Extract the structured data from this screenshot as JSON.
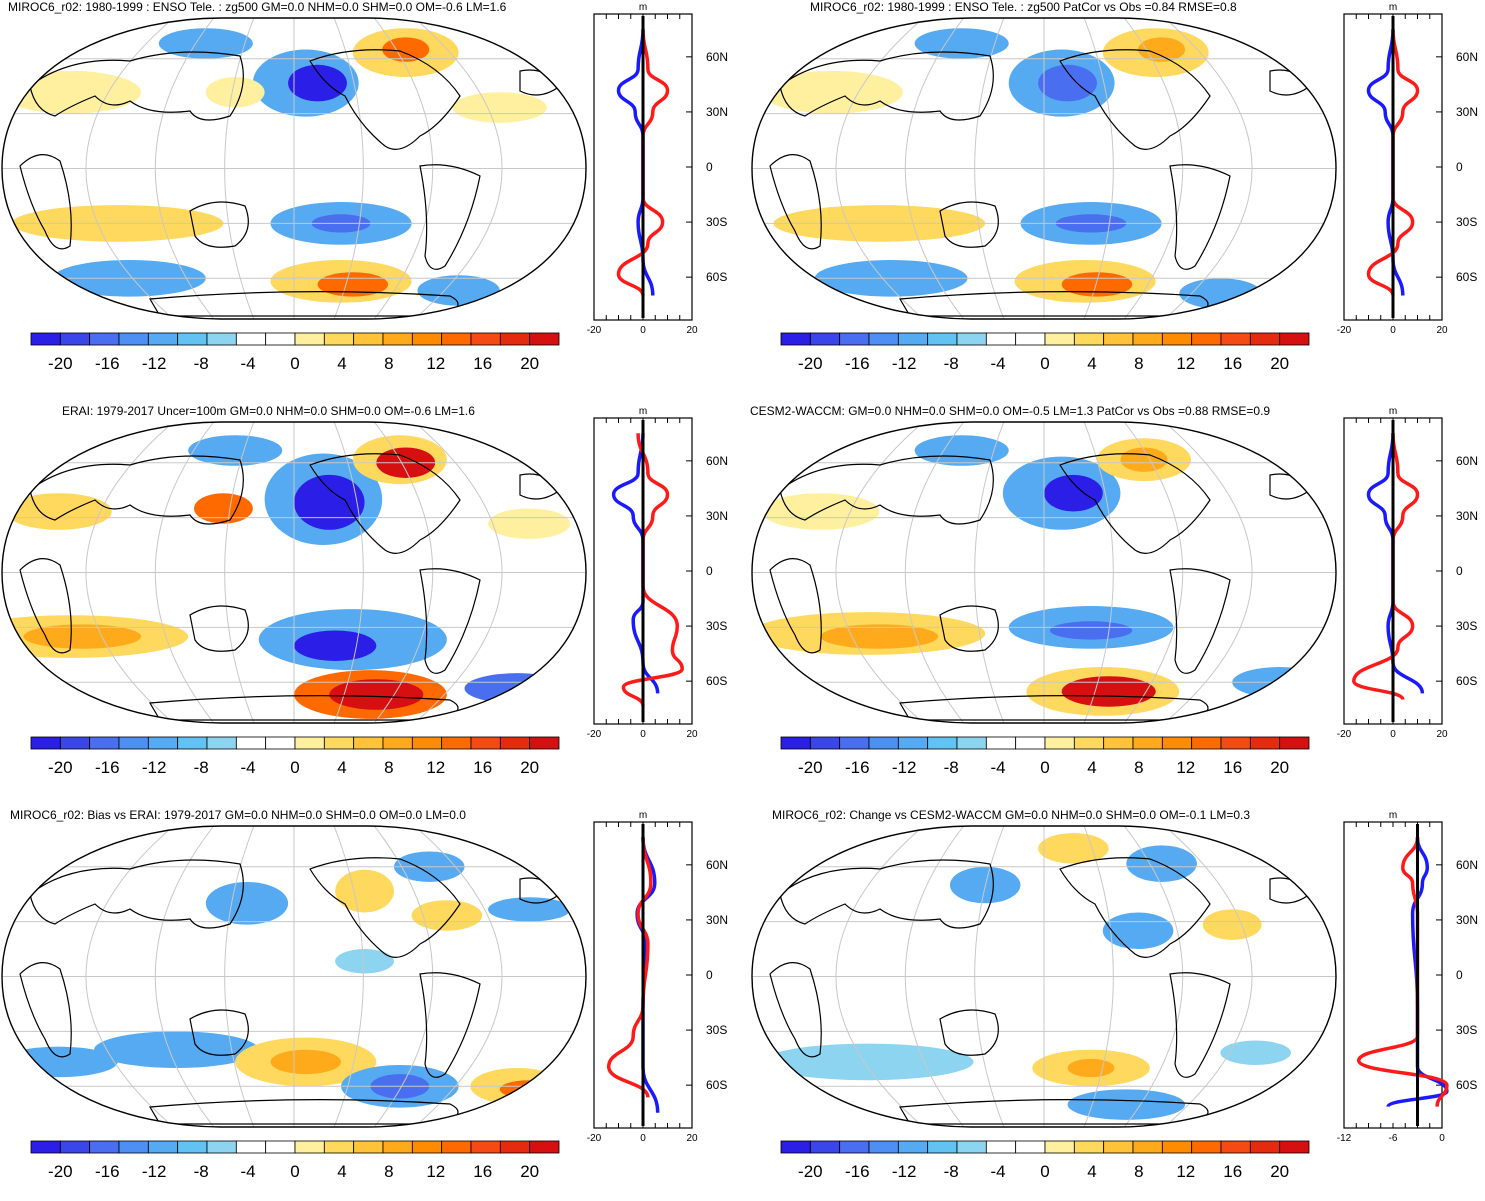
{
  "colorbar": {
    "labels": [
      "-20",
      "-16",
      "-12",
      "-8",
      "-4",
      "0",
      "4",
      "8",
      "12",
      "16",
      "20"
    ],
    "colors": [
      "#2b1ee6",
      "#3a46ea",
      "#4a6ef0",
      "#4d8ff2",
      "#55aaf2",
      "#62c2f2",
      "#8dd4f0",
      "#ffffff",
      "#ffffff",
      "#fff0a0",
      "#ffd85e",
      "#ffc33a",
      "#ffaa1a",
      "#ff8c00",
      "#ff6a00",
      "#f54a14",
      "#e62a10",
      "#d61010"
    ]
  },
  "lat_labels": [
    "60N",
    "30N",
    "0",
    "30S",
    "60S"
  ],
  "profile_unit": "m",
  "panels": [
    {
      "id": "miroc6",
      "title": "MIROC6_r02: 1980-1999 : ENSO Tele. : zg500 GM=0.0 NHM=0.0 SHM=0.0 OM=-0.6 LM=1.6",
      "xticks": [
        "-20",
        "0",
        "20"
      ]
    },
    {
      "id": "miroc6-patcor",
      "title": "MIROC6_r02: 1980-1999 : ENSO Tele. : zg500 PatCor vs Obs =0.84 RMSE=0.8",
      "xticks": [
        "-20",
        "0",
        "20"
      ]
    },
    {
      "id": "erai",
      "title": "ERAI: 1979-2017 Uncer=100m GM=0.0 NHM=0.0 SHM=0.0 OM=-0.6 LM=1.6",
      "xticks": [
        "-20",
        "0",
        "20"
      ]
    },
    {
      "id": "cesm2",
      "title": "CESM2-WACCM: GM=0.0 NHM=0.0 SHM=0.0 OM=-0.5 LM=1.3 PatCor vs Obs =0.88 RMSE=0.9",
      "xticks": [
        "-20",
        "0",
        "20"
      ]
    },
    {
      "id": "bias",
      "title": "MIROC6_r02: Bias vs ERAI: 1979-2017 GM=0.0 NHM=0.0 SHM=0.0 OM=0.0 LM=0.0",
      "xticks": [
        "-20",
        "0",
        "20"
      ]
    },
    {
      "id": "change",
      "title": "MIROC6_r02: Change vs CESM2-WACCM GM=0.0 NHM=0.0 SHM=0.0 OM=-0.1 LM=0.3",
      "xticks": [
        "-12",
        "-6",
        "0"
      ]
    }
  ]
}
